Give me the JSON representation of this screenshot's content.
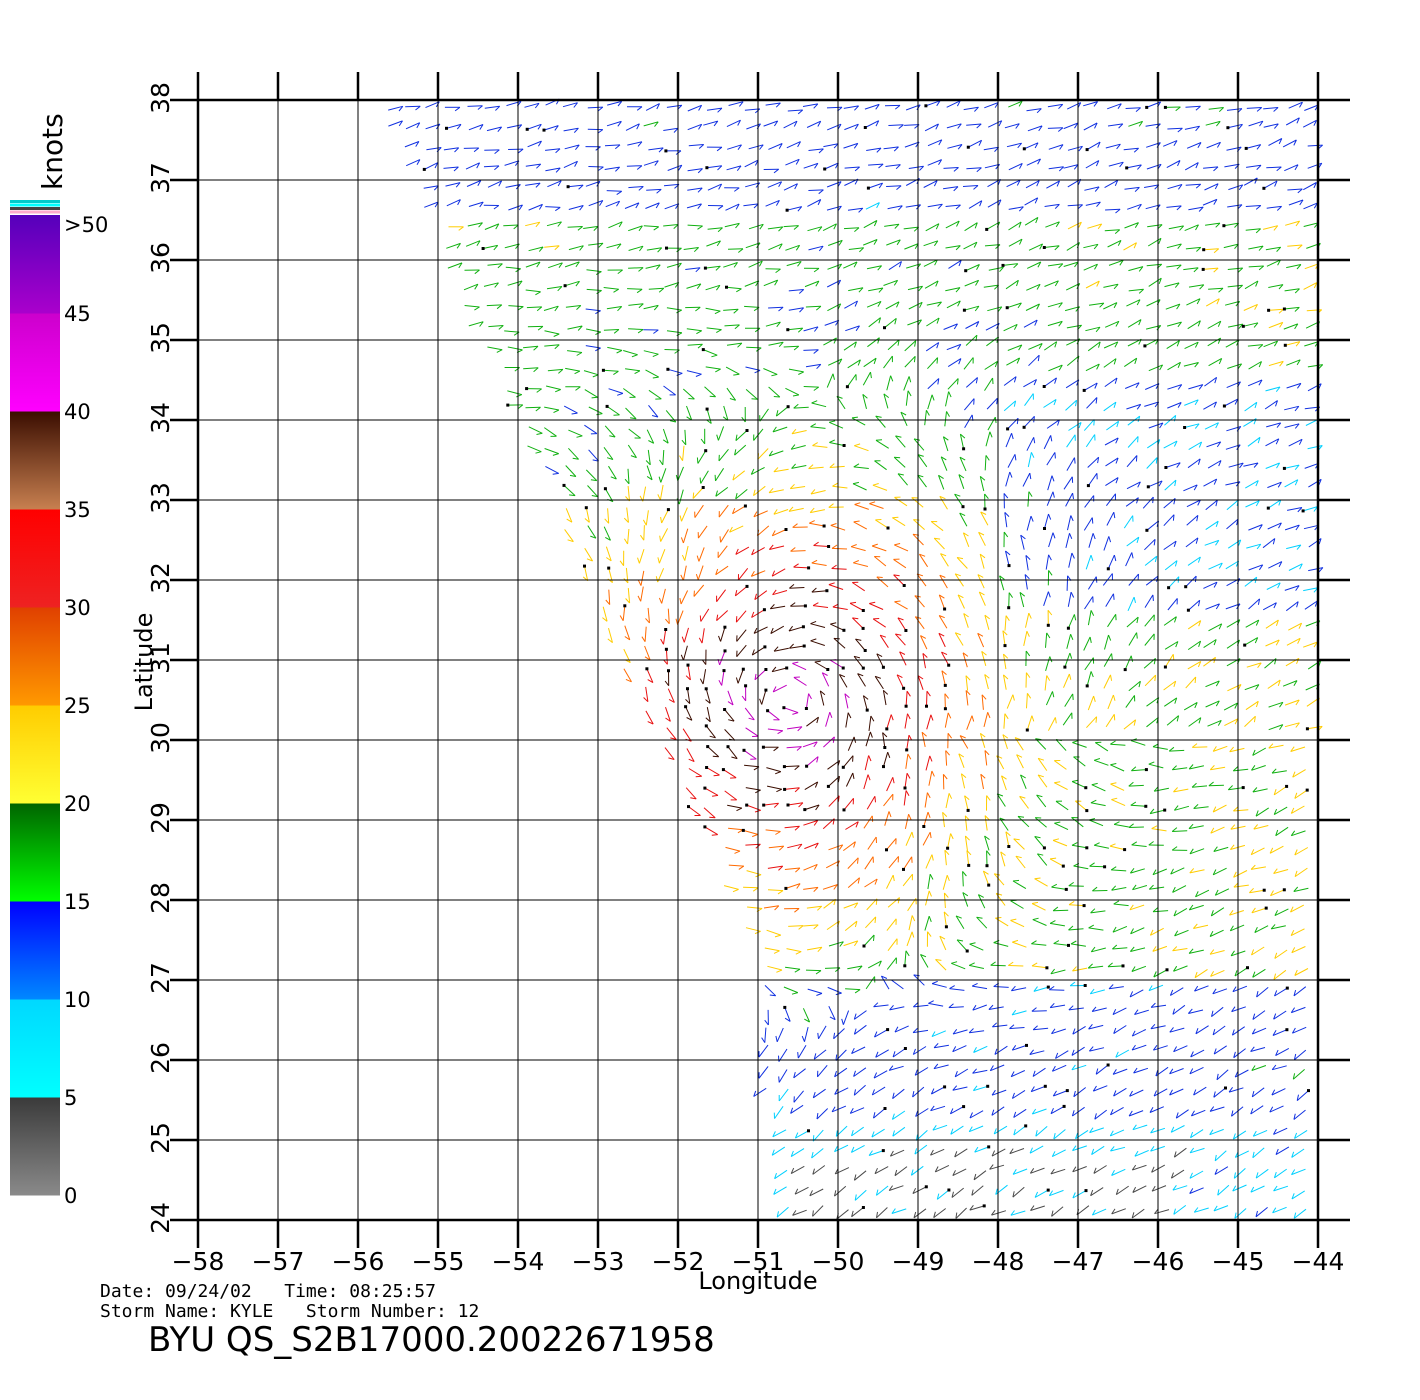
{
  "colorbar": {
    "unit_label": "knots",
    "top_label": ">50",
    "ticks": [
      "0",
      "5",
      "10",
      "15",
      "20",
      "25",
      "30",
      "35",
      "40",
      "45"
    ],
    "bands": [
      {
        "from": 0,
        "to": 5,
        "top": "#3a3a3a",
        "bottom": "#8a8a8a"
      },
      {
        "from": 5,
        "to": 10,
        "top": "#00d8ff",
        "bottom": "#00ffff"
      },
      {
        "from": 10,
        "to": 15,
        "top": "#0000ff",
        "bottom": "#0088ff"
      },
      {
        "from": 15,
        "to": 20,
        "top": "#006400",
        "bottom": "#00ff00"
      },
      {
        "from": 20,
        "to": 25,
        "top": "#ffcc00",
        "bottom": "#ffff33"
      },
      {
        "from": 25,
        "to": 30,
        "top": "#e04000",
        "bottom": "#ff9900"
      },
      {
        "from": 30,
        "to": 35,
        "top": "#ff0000",
        "bottom": "#ee2222"
      },
      {
        "from": 35,
        "to": 40,
        "top": "#3a0d00",
        "bottom": "#c88050"
      },
      {
        "from": 40,
        "to": 45,
        "top": "#cc00cc",
        "bottom": "#ff00ff"
      },
      {
        "from": 45,
        "to": 50,
        "top": "#5500bb",
        "bottom": "#aa00cc"
      }
    ],
    "swatch_colors": [
      "#00cccc",
      "#00ffff",
      "#444444",
      "#ffaacc"
    ]
  },
  "map": {
    "x_label": "Longitude",
    "y_label": "Latitude",
    "lon_ticks": [
      -58,
      -57,
      -56,
      -55,
      -54,
      -53,
      -52,
      -51,
      -50,
      -49,
      -48,
      -47,
      -46,
      -45,
      -44
    ],
    "lat_ticks": [
      24,
      25,
      26,
      27,
      28,
      29,
      30,
      31,
      32,
      33,
      34,
      35,
      36,
      37,
      38
    ],
    "lon_range": [
      -58,
      -44
    ],
    "lat_range": [
      24,
      38
    ],
    "swath_polygon_lonlat": [
      [
        -55.8,
        38
      ],
      [
        -44,
        38
      ],
      [
        -44,
        24
      ],
      [
        -50.6,
        24
      ],
      [
        -51,
        26
      ],
      [
        -51,
        27.2
      ],
      [
        -52.3,
        30
      ],
      [
        -53.6,
        33
      ],
      [
        -55,
        36
      ]
    ],
    "storm_center_lonlat": [
      -50.6,
      30.5
    ]
  },
  "footer": {
    "line1": "Date: 09/24/02   Time: 08:25:57",
    "line2": "Storm Name: KYLE   Storm Number: 12",
    "title": "BYU QS_S2B17000.20022671958"
  }
}
